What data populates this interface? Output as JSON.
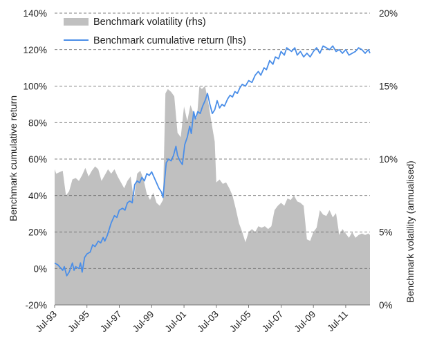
{
  "chart_data": {
    "type": "line+area",
    "legend": {
      "placement": "top-left",
      "entries": [
        {
          "label": "Benchmark volatility (rhs)",
          "color": "#c0c0c0",
          "kind": "area"
        },
        {
          "label": "Benchmark cumulative return (lhs)",
          "color": "#4a8ee8",
          "kind": "line"
        }
      ]
    },
    "y_left": {
      "label": "Benchmark cumulative return",
      "min": -20,
      "max": 140,
      "step": 20,
      "ticks": [
        "-20%",
        "0%",
        "20%",
        "40%",
        "60%",
        "80%",
        "100%",
        "120%",
        "140%"
      ]
    },
    "y_right": {
      "label": "Benchmark volatility (annualised)",
      "min": 0,
      "max": 20,
      "step": 5,
      "ticks": [
        "0%",
        "5%",
        "10%",
        "15%",
        "20%"
      ]
    },
    "x": {
      "start": 1993.5,
      "end": 2013.0,
      "tick_labels": [
        "Jul-93",
        "Jul-95",
        "Jul-97",
        "Jul-99",
        "Jul-01",
        "Jul-03",
        "Jul-05",
        "Jul-07",
        "Jul-09",
        "Jul-11"
      ],
      "tick_years": [
        1993.5,
        1995.5,
        1997.5,
        1999.5,
        2001.5,
        2003.5,
        2005.5,
        2007.5,
        2009.5,
        2011.5
      ]
    },
    "grid": "horizontal dashed",
    "series": [
      {
        "name": "Benchmark cumulative return (lhs)",
        "axis": "left",
        "color": "#4a8ee8",
        "points": [
          [
            1993.5,
            3
          ],
          [
            1993.7,
            2
          ],
          [
            1993.9,
            0
          ],
          [
            1994.0,
            -1
          ],
          [
            1994.1,
            1
          ],
          [
            1994.25,
            -4
          ],
          [
            1994.4,
            -2
          ],
          [
            1994.6,
            3
          ],
          [
            1994.7,
            -1
          ],
          [
            1994.8,
            1
          ],
          [
            1995.0,
            0
          ],
          [
            1995.1,
            3
          ],
          [
            1995.2,
            -2
          ],
          [
            1995.35,
            6
          ],
          [
            1995.5,
            8
          ],
          [
            1995.7,
            9
          ],
          [
            1995.85,
            13
          ],
          [
            1996.0,
            12
          ],
          [
            1996.2,
            15
          ],
          [
            1996.35,
            14
          ],
          [
            1996.5,
            17
          ],
          [
            1996.6,
            15
          ],
          [
            1996.75,
            18
          ],
          [
            1997.0,
            25
          ],
          [
            1997.2,
            29
          ],
          [
            1997.35,
            28
          ],
          [
            1997.5,
            32
          ],
          [
            1997.7,
            33
          ],
          [
            1997.85,
            32
          ],
          [
            1998.0,
            36
          ],
          [
            1998.15,
            37
          ],
          [
            1998.3,
            36
          ],
          [
            1998.45,
            46
          ],
          [
            1998.6,
            48
          ],
          [
            1998.75,
            47
          ],
          [
            1998.9,
            50
          ],
          [
            1999.05,
            48
          ],
          [
            1999.2,
            52
          ],
          [
            1999.35,
            51
          ],
          [
            1999.5,
            53
          ],
          [
            1999.65,
            50
          ],
          [
            1999.8,
            47
          ],
          [
            1999.95,
            44
          ],
          [
            2000.1,
            42
          ],
          [
            2000.2,
            39
          ],
          [
            2000.4,
            58
          ],
          [
            2000.55,
            60
          ],
          [
            2000.7,
            59
          ],
          [
            2000.85,
            62
          ],
          [
            2001.0,
            67
          ],
          [
            2001.1,
            62
          ],
          [
            2001.25,
            59
          ],
          [
            2001.4,
            57
          ],
          [
            2001.55,
            68
          ],
          [
            2001.7,
            72
          ],
          [
            2001.85,
            78
          ],
          [
            2001.95,
            74
          ],
          [
            2002.1,
            86
          ],
          [
            2002.2,
            82
          ],
          [
            2002.35,
            86
          ],
          [
            2002.5,
            85
          ],
          [
            2002.65,
            89
          ],
          [
            2002.8,
            92
          ],
          [
            2002.95,
            96
          ],
          [
            2003.1,
            90
          ],
          [
            2003.25,
            85
          ],
          [
            2003.4,
            87
          ],
          [
            2003.55,
            92
          ],
          [
            2003.7,
            88
          ],
          [
            2003.85,
            90
          ],
          [
            2004.0,
            89
          ],
          [
            2004.2,
            93
          ],
          [
            2004.35,
            95
          ],
          [
            2004.5,
            94
          ],
          [
            2004.65,
            97
          ],
          [
            2004.8,
            96
          ],
          [
            2004.95,
            99
          ],
          [
            2005.1,
            101
          ],
          [
            2005.3,
            100
          ],
          [
            2005.5,
            103
          ],
          [
            2005.7,
            102
          ],
          [
            2005.9,
            106
          ],
          [
            2006.1,
            108
          ],
          [
            2006.25,
            106
          ],
          [
            2006.45,
            110
          ],
          [
            2006.6,
            109
          ],
          [
            2006.8,
            114
          ],
          [
            2007.0,
            112
          ],
          [
            2007.15,
            116
          ],
          [
            2007.35,
            115
          ],
          [
            2007.5,
            119
          ],
          [
            2007.7,
            117
          ],
          [
            2007.85,
            121
          ],
          [
            2008.0,
            120
          ],
          [
            2008.15,
            119
          ],
          [
            2008.35,
            121
          ],
          [
            2008.5,
            117
          ],
          [
            2008.7,
            119
          ],
          [
            2008.9,
            116
          ],
          [
            2009.1,
            118
          ],
          [
            2009.3,
            116
          ],
          [
            2009.5,
            119
          ],
          [
            2009.7,
            121
          ],
          [
            2009.9,
            118
          ],
          [
            2010.1,
            122
          ],
          [
            2010.3,
            121
          ],
          [
            2010.5,
            120
          ],
          [
            2010.7,
            122
          ],
          [
            2010.9,
            119
          ],
          [
            2011.1,
            120
          ],
          [
            2011.3,
            118
          ],
          [
            2011.5,
            120
          ],
          [
            2011.7,
            117
          ],
          [
            2011.9,
            118
          ],
          [
            2012.1,
            119
          ],
          [
            2012.3,
            121
          ],
          [
            2012.5,
            120
          ],
          [
            2012.7,
            118
          ],
          [
            2012.9,
            120
          ],
          [
            2013.0,
            118
          ]
        ]
      },
      {
        "name": "Benchmark volatility (rhs)",
        "axis": "right",
        "color": "#c0c0c0",
        "points": [
          [
            1993.5,
            9.3
          ],
          [
            1993.6,
            9.0
          ],
          [
            1993.8,
            9.1
          ],
          [
            1994.0,
            9.2
          ],
          [
            1994.2,
            7.5
          ],
          [
            1994.4,
            7.8
          ],
          [
            1994.6,
            8.6
          ],
          [
            1994.8,
            8.7
          ],
          [
            1995.0,
            8.5
          ],
          [
            1995.2,
            8.9
          ],
          [
            1995.4,
            9.4
          ],
          [
            1995.6,
            8.8
          ],
          [
            1995.8,
            9.2
          ],
          [
            1996.0,
            9.5
          ],
          [
            1996.2,
            9.3
          ],
          [
            1996.4,
            8.5
          ],
          [
            1996.6,
            8.9
          ],
          [
            1996.8,
            9.3
          ],
          [
            1997.0,
            9.0
          ],
          [
            1997.2,
            9.3
          ],
          [
            1997.4,
            8.8
          ],
          [
            1997.6,
            8.4
          ],
          [
            1997.8,
            8.0
          ],
          [
            1998.0,
            8.5
          ],
          [
            1998.2,
            8.8
          ],
          [
            1998.4,
            7.2
          ],
          [
            1998.6,
            9.0
          ],
          [
            1998.8,
            9.2
          ],
          [
            1999.0,
            8.6
          ],
          [
            1999.2,
            7.6
          ],
          [
            1999.4,
            7.2
          ],
          [
            1999.6,
            7.7
          ],
          [
            1999.8,
            7.0
          ],
          [
            2000.0,
            6.8
          ],
          [
            2000.2,
            7.2
          ],
          [
            2000.35,
            14.5
          ],
          [
            2000.5,
            14.8
          ],
          [
            2000.7,
            14.6
          ],
          [
            2000.9,
            14.3
          ],
          [
            2001.1,
            11.8
          ],
          [
            2001.3,
            11.5
          ],
          [
            2001.5,
            13.6
          ],
          [
            2001.7,
            12.6
          ],
          [
            2001.9,
            13.7
          ],
          [
            2002.1,
            13.1
          ],
          [
            2002.3,
            12.8
          ],
          [
            2002.45,
            15.0
          ],
          [
            2002.6,
            14.8
          ],
          [
            2002.8,
            15.0
          ],
          [
            2003.0,
            13.9
          ],
          [
            2003.2,
            12.5
          ],
          [
            2003.4,
            11.2
          ],
          [
            2003.5,
            8.4
          ],
          [
            2003.7,
            8.6
          ],
          [
            2003.9,
            8.3
          ],
          [
            2004.1,
            8.4
          ],
          [
            2004.3,
            8.0
          ],
          [
            2004.5,
            7.5
          ],
          [
            2004.7,
            6.6
          ],
          [
            2004.9,
            5.6
          ],
          [
            2005.1,
            5.0
          ],
          [
            2005.3,
            4.3
          ],
          [
            2005.5,
            5.0
          ],
          [
            2005.7,
            5.2
          ],
          [
            2005.9,
            5.0
          ],
          [
            2006.1,
            5.4
          ],
          [
            2006.3,
            5.3
          ],
          [
            2006.5,
            5.4
          ],
          [
            2006.7,
            5.2
          ],
          [
            2006.9,
            5.4
          ],
          [
            2007.1,
            6.5
          ],
          [
            2007.3,
            6.8
          ],
          [
            2007.5,
            7.0
          ],
          [
            2007.7,
            6.8
          ],
          [
            2007.9,
            7.3
          ],
          [
            2008.1,
            7.2
          ],
          [
            2008.3,
            7.5
          ],
          [
            2008.5,
            7.1
          ],
          [
            2008.7,
            7.0
          ],
          [
            2008.9,
            6.8
          ],
          [
            2009.1,
            4.5
          ],
          [
            2009.3,
            4.4
          ],
          [
            2009.5,
            5.0
          ],
          [
            2009.7,
            5.3
          ],
          [
            2009.9,
            6.5
          ],
          [
            2010.1,
            6.2
          ],
          [
            2010.3,
            6.1
          ],
          [
            2010.5,
            6.5
          ],
          [
            2010.7,
            6.0
          ],
          [
            2010.9,
            6.3
          ],
          [
            2011.1,
            4.8
          ],
          [
            2011.3,
            5.2
          ],
          [
            2011.5,
            4.9
          ],
          [
            2011.7,
            4.6
          ],
          [
            2011.9,
            5.0
          ],
          [
            2012.1,
            4.6
          ],
          [
            2012.3,
            4.8
          ],
          [
            2012.5,
            4.9
          ],
          [
            2012.7,
            4.8
          ],
          [
            2012.9,
            4.9
          ],
          [
            2013.0,
            4.8
          ]
        ]
      }
    ]
  }
}
